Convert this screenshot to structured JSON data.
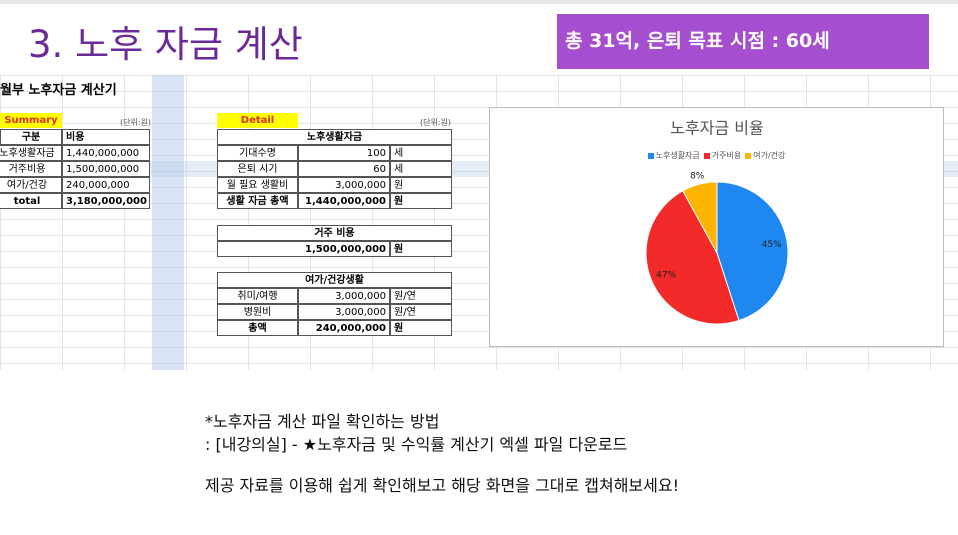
{
  "header": {
    "title": "3. 노후 자금 계산",
    "badge": "총 31억, 은퇴 목표 시점  : 60세"
  },
  "sheet": {
    "title": "월부 노후자금 계산기",
    "summary": {
      "label": "Summary",
      "unit": "(단위:원)",
      "columns": [
        "구분",
        "비용"
      ],
      "rows": [
        [
          "노후생활자금",
          "1,440,000,000"
        ],
        [
          "거주비용",
          "1,500,000,000"
        ],
        [
          "여가/건강",
          "240,000,000"
        ],
        [
          "total",
          "3,180,000,000"
        ]
      ]
    },
    "detail": {
      "label": "Detail",
      "unit": "(단위:원)",
      "living": {
        "title": "노후생활자금",
        "rows": [
          [
            "기대수명",
            "100",
            "세"
          ],
          [
            "은퇴 시기",
            "60",
            "세"
          ],
          [
            "월 필요 생활비",
            "3,000,000",
            "원"
          ],
          [
            "생활 자금 총액",
            "1,440,000,000",
            "원"
          ]
        ]
      },
      "housing": {
        "title": "거주 비용",
        "rows": [
          [
            "1,500,000,000",
            "원"
          ]
        ]
      },
      "leisure": {
        "title": "여가/건강생활",
        "rows": [
          [
            "취미/여행",
            "3,000,000",
            "원/연"
          ],
          [
            "병원비",
            "3,000,000",
            "원/연"
          ],
          [
            "총액",
            "240,000,000",
            "원"
          ]
        ]
      }
    }
  },
  "chart_data": {
    "type": "pie",
    "title": "노후자금 비율",
    "categories": [
      "노후생활자금",
      "거주비용",
      "여가/건강"
    ],
    "values": [
      45,
      47,
      8
    ],
    "value_labels": [
      "45%",
      "47%",
      "8%"
    ],
    "colors": [
      "#1e88f0",
      "#f22a2a",
      "#ffb400"
    ]
  },
  "notes": {
    "lines": [
      "*노후자금 계산 파일 확인하는 방법",
      ": [내강의실] - ★노후자금 및 수익률 계산기 엑셀 파일 다운로드",
      "제공 자료를 이용해 쉽게 확인해보고 해당 화면을 그대로 캡쳐해보세요!"
    ]
  }
}
